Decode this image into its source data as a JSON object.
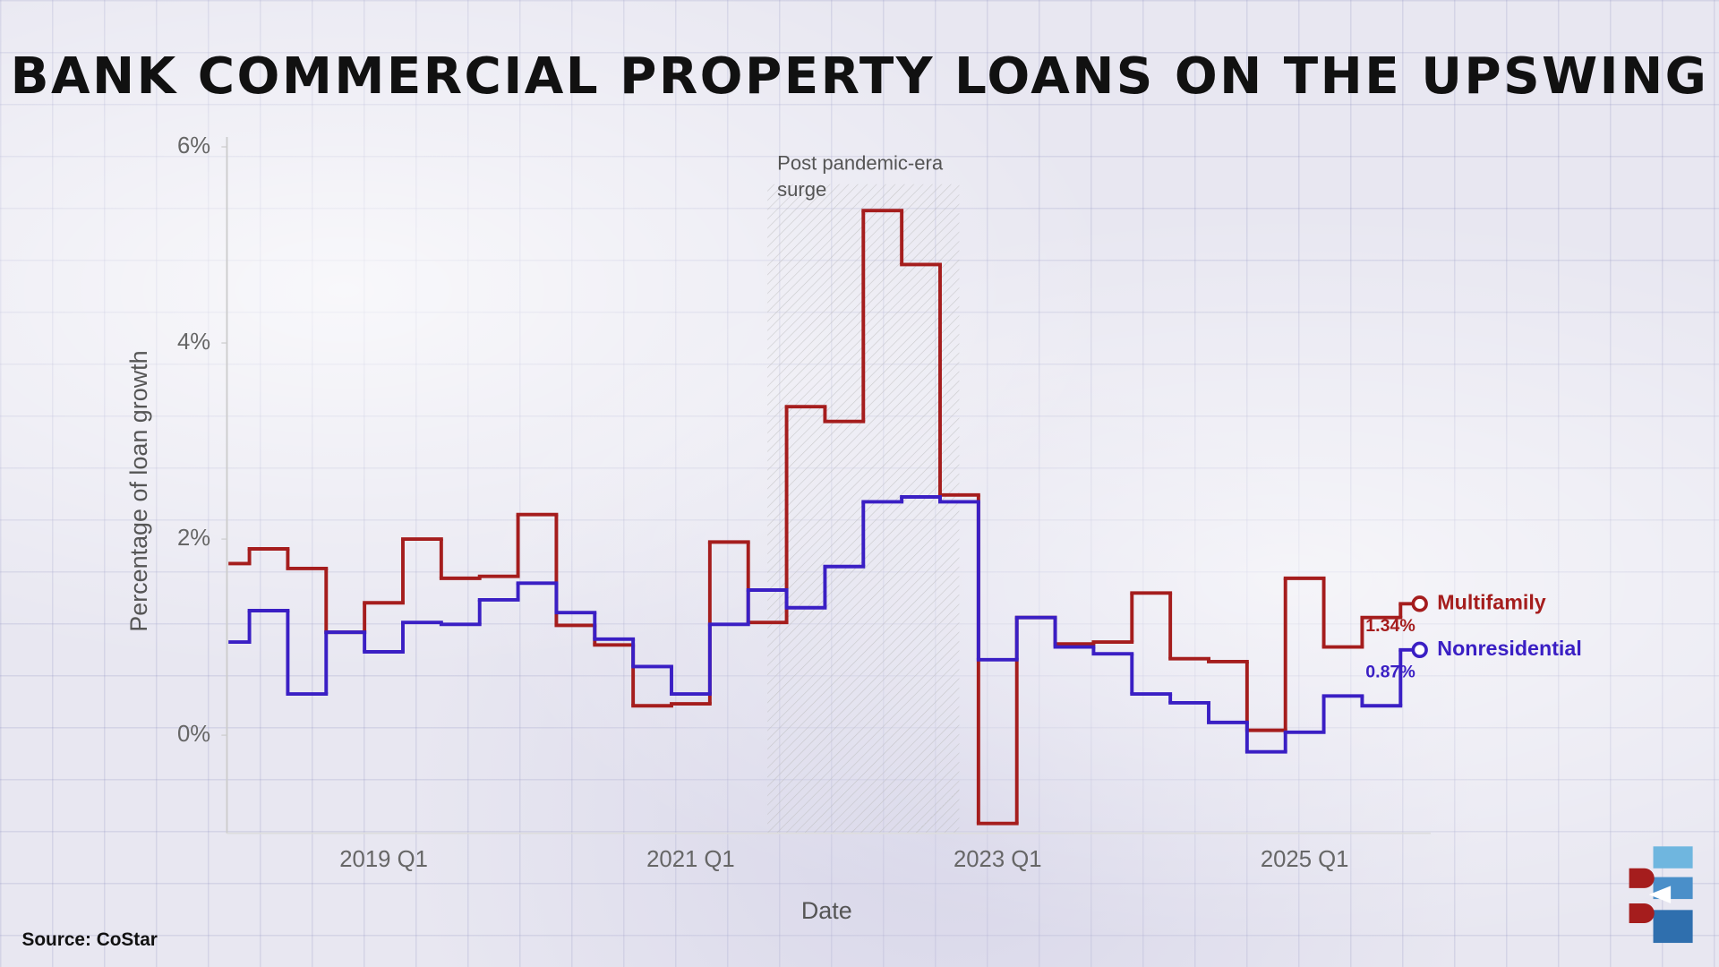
{
  "chart_data": {
    "type": "step",
    "title": "BANK COMMERCIAL PROPERTY LOANS ON THE UPSWING",
    "x_label": "Date",
    "y_label": "Percentage of loan growth",
    "source": "Source: CoStar",
    "categories": [
      null,
      null,
      null,
      null,
      "2019 Q1",
      null,
      null,
      null,
      null,
      null,
      null,
      null,
      "2021 Q1",
      null,
      null,
      null,
      null,
      null,
      null,
      null,
      "2023 Q1",
      null,
      null,
      null,
      null,
      null,
      null,
      null,
      "2025 Q1",
      null,
      null,
      null
    ],
    "ylim": [
      -1,
      6.1
    ],
    "yticks": [
      {
        "value": 0,
        "label": "0%"
      },
      {
        "value": 2,
        "label": "2%"
      },
      {
        "value": 4,
        "label": "4%"
      },
      {
        "value": 6,
        "label": "6%"
      }
    ],
    "annotation": {
      "text": [
        "Post pandemic-era",
        "surge"
      ],
      "span": [
        14,
        19
      ]
    },
    "series": [
      {
        "name": "Multifamily",
        "color": "#a51d1d",
        "values": [
          1.75,
          1.9,
          1.7,
          1.05,
          1.35,
          2.0,
          1.6,
          1.62,
          2.25,
          1.12,
          0.92,
          0.3,
          0.32,
          1.97,
          1.15,
          3.35,
          3.2,
          5.35,
          4.8,
          2.45,
          -0.9,
          1.2,
          0.93,
          0.95,
          1.45,
          0.78,
          0.75,
          0.05,
          1.6,
          0.9,
          1.2,
          1.34
        ],
        "value_labels": [
          null,
          null,
          null,
          null,
          null,
          null,
          null,
          null,
          null,
          null,
          null,
          null,
          null,
          null,
          null,
          null,
          null,
          null,
          null,
          null,
          null,
          null,
          null,
          null,
          null,
          null,
          null,
          null,
          null,
          null,
          null,
          "1.34%"
        ]
      },
      {
        "name": "Nonresidential",
        "color": "#3a1fc4",
        "values": [
          0.95,
          1.27,
          0.42,
          1.05,
          0.85,
          1.15,
          1.13,
          1.38,
          1.55,
          1.25,
          0.98,
          0.7,
          0.42,
          1.13,
          1.48,
          1.3,
          1.72,
          2.38,
          2.43,
          2.38,
          0.77,
          1.2,
          0.9,
          0.83,
          0.42,
          0.33,
          0.13,
          -0.17,
          0.03,
          0.4,
          0.3,
          0.87
        ],
        "value_labels": [
          null,
          null,
          null,
          null,
          null,
          null,
          null,
          null,
          null,
          null,
          null,
          null,
          null,
          null,
          null,
          null,
          null,
          null,
          null,
          null,
          null,
          null,
          null,
          null,
          null,
          null,
          null,
          null,
          null,
          null,
          null,
          "0.87%"
        ]
      }
    ]
  }
}
